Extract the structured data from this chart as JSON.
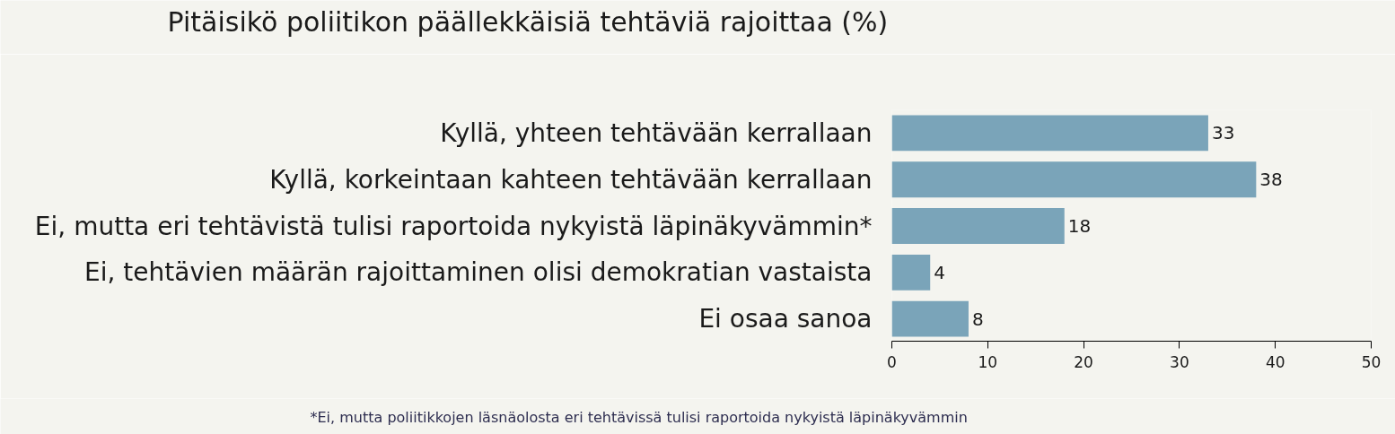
{
  "chart_data": {
    "type": "bar",
    "orientation": "horizontal",
    "title": "Pitäisikö poliitikon päällekkäisiä tehtäviä rajoittaa (%)",
    "categories": [
      "Kyllä, yhteen tehtävään kerrallaan",
      "Kyllä, korkeintaan kahteen tehtävään kerrallaan",
      "Ei, mutta eri tehtävistä tulisi raportoida nykyistä läpinäkyvämmin*",
      "Ei, tehtävien määrän rajoittaminen olisi demokratian vastaista",
      "Ei osaa sanoa"
    ],
    "values": [
      33,
      38,
      18,
      4,
      8
    ],
    "color": "#7aa4b9",
    "xlim": [
      0,
      50
    ],
    "xticks": [
      0,
      10,
      20,
      30,
      40,
      50
    ],
    "data_labels": true,
    "annotations": [
      "*Ei, mutta poliitikkojen läsnäolosta eri tehtävissä tulisi raportoida nykyistä läpinäkyvämmin"
    ]
  }
}
